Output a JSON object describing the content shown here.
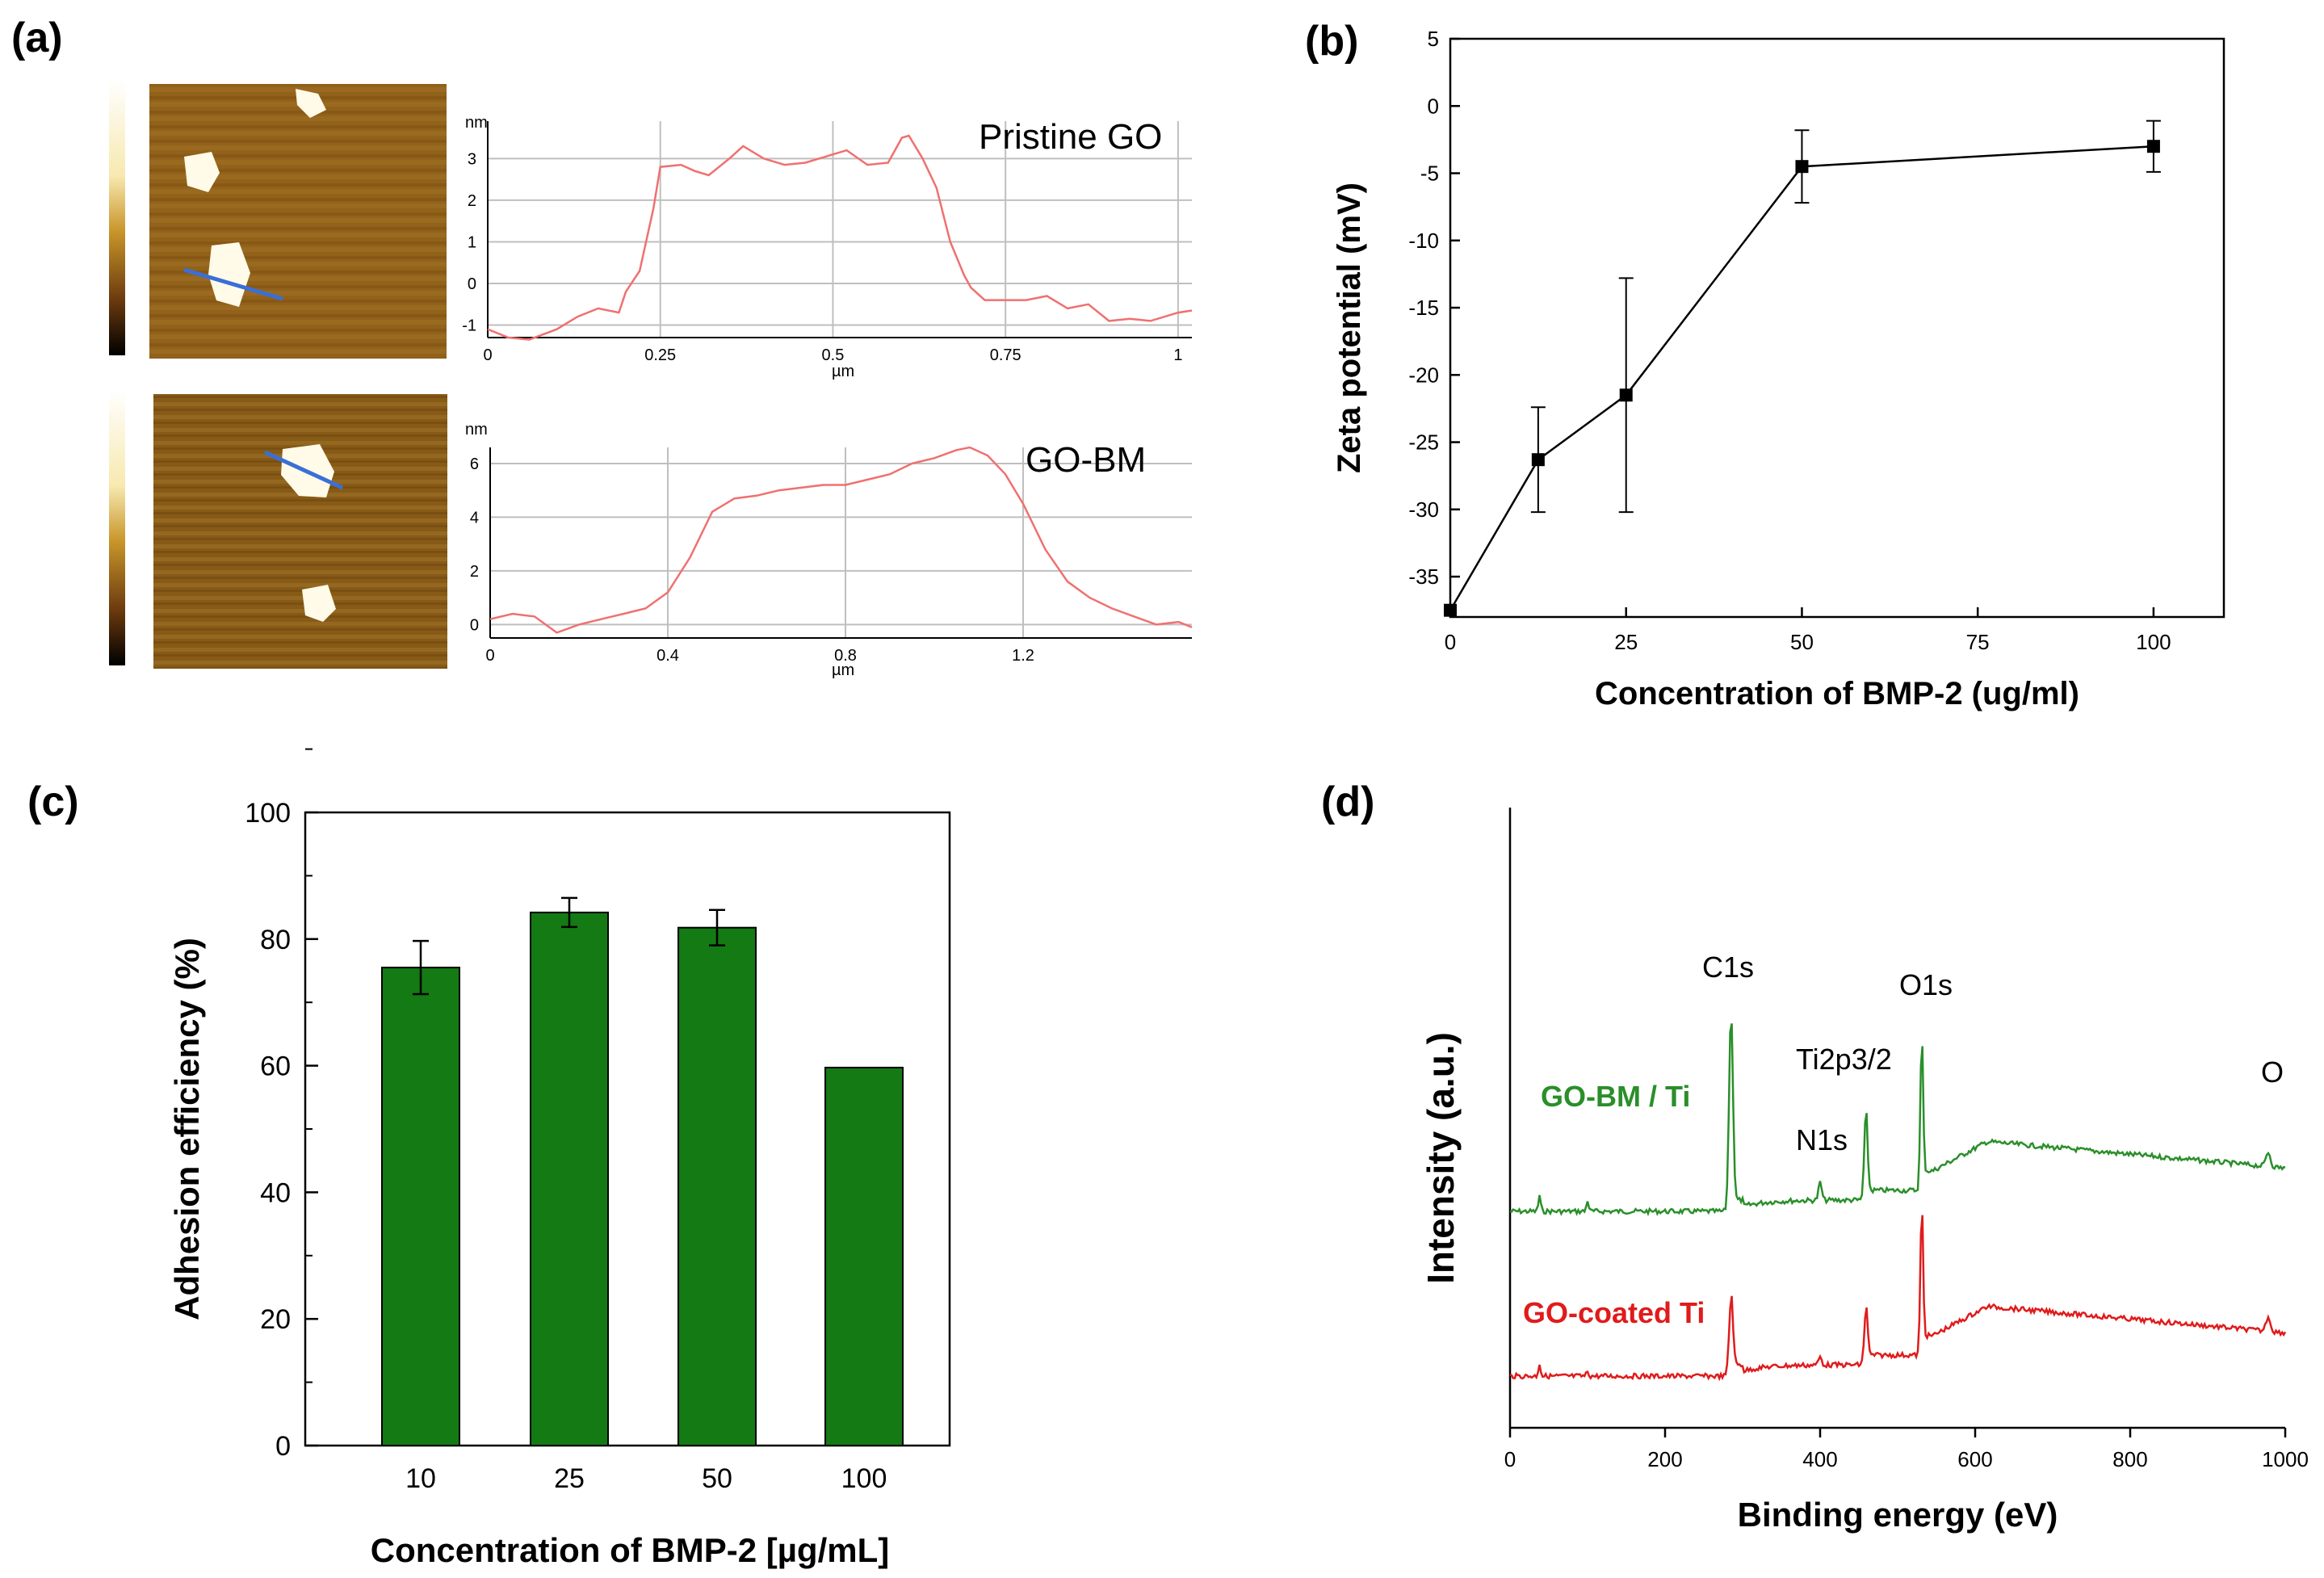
{
  "panel_labels": {
    "a": "(a)",
    "b": "(b)",
    "c": "(c)",
    "d": "(d)"
  },
  "colors": {
    "profile_line": "#f07070",
    "scan_line": "#3a6fd6",
    "bar_fill": "#147a14",
    "spectrum_top": "#2a8f2a",
    "spectrum_bottom": "#e01b1b",
    "axis": "#000000",
    "grid": "#bfbfbf"
  },
  "chart_data": [
    {
      "panel": "a-top",
      "type": "line",
      "title": "Pristine GO",
      "xlabel": "µm",
      "ylabel": "nm",
      "xlim": [
        0,
        1.02
      ],
      "ylim": [
        -1.3,
        3.9
      ],
      "xticks": [
        0,
        0.25,
        0.5,
        0.75,
        1
      ],
      "xtick_labels": [
        "0",
        "0.25",
        "0.5",
        "0.75",
        "1"
      ],
      "yticks": [
        -1,
        0,
        1,
        2,
        3
      ],
      "ytick_labels": [
        "-1",
        "0",
        "1",
        "2",
        "3"
      ],
      "x": [
        0,
        0.03,
        0.06,
        0.1,
        0.13,
        0.16,
        0.19,
        0.2,
        0.22,
        0.24,
        0.25,
        0.28,
        0.3,
        0.32,
        0.35,
        0.37,
        0.4,
        0.43,
        0.46,
        0.5,
        0.52,
        0.55,
        0.58,
        0.6,
        0.61,
        0.63,
        0.65,
        0.67,
        0.69,
        0.7,
        0.72,
        0.75,
        0.78,
        0.81,
        0.84,
        0.87,
        0.9,
        0.93,
        0.96,
        1.0,
        1.02
      ],
      "y": [
        -1.1,
        -1.3,
        -1.35,
        -1.1,
        -0.8,
        -0.6,
        -0.7,
        -0.2,
        0.3,
        1.8,
        2.8,
        2.85,
        2.7,
        2.6,
        3.0,
        3.3,
        3.0,
        2.85,
        2.9,
        3.1,
        3.2,
        2.85,
        2.9,
        3.5,
        3.55,
        3.0,
        2.3,
        1.0,
        0.2,
        -0.1,
        -0.4,
        -0.4,
        -0.4,
        -0.3,
        -0.6,
        -0.5,
        -0.9,
        -0.85,
        -0.9,
        -0.7,
        -0.65
      ]
    },
    {
      "panel": "a-bottom",
      "type": "line",
      "title": "GO-BM",
      "xlabel": "µm",
      "ylabel": "nm",
      "xlim": [
        0,
        1.58
      ],
      "ylim": [
        -0.5,
        6.6
      ],
      "xticks": [
        0,
        0.4,
        0.8,
        1.2
      ],
      "xtick_labels": [
        "0",
        "0.4",
        "0.8",
        "1.2"
      ],
      "yticks": [
        0,
        2,
        4,
        6
      ],
      "ytick_labels": [
        "0",
        "2",
        "4",
        "6"
      ],
      "x": [
        0,
        0.05,
        0.1,
        0.15,
        0.2,
        0.25,
        0.3,
        0.35,
        0.4,
        0.45,
        0.5,
        0.55,
        0.6,
        0.65,
        0.7,
        0.75,
        0.8,
        0.85,
        0.9,
        0.95,
        1.0,
        1.05,
        1.08,
        1.12,
        1.16,
        1.2,
        1.25,
        1.3,
        1.35,
        1.4,
        1.45,
        1.5,
        1.55,
        1.58
      ],
      "y": [
        0.2,
        0.4,
        0.3,
        -0.3,
        0.0,
        0.2,
        0.4,
        0.6,
        1.2,
        2.5,
        4.2,
        4.7,
        4.8,
        5.0,
        5.1,
        5.2,
        5.2,
        5.4,
        5.6,
        6.0,
        6.2,
        6.5,
        6.6,
        6.3,
        5.6,
        4.5,
        2.8,
        1.6,
        1.0,
        0.6,
        0.3,
        0.0,
        0.1,
        -0.1
      ]
    },
    {
      "panel": "b",
      "type": "line",
      "title": "",
      "xlabel": "Concentration of BMP-2 (ug/ml)",
      "ylabel": "Zeta potential (mV)",
      "xlim": [
        0,
        110
      ],
      "ylim": [
        -38,
        5
      ],
      "xticks": [
        0,
        25,
        50,
        75,
        100
      ],
      "xtick_labels": [
        "0",
        "25",
        "50",
        "75",
        "100"
      ],
      "yticks": [
        5,
        0,
        -5,
        -10,
        -15,
        -20,
        -25,
        -30,
        -35
      ],
      "ytick_labels": [
        "5",
        "0",
        "-5",
        "-10",
        "-15",
        "-20",
        "-25",
        "-30",
        "-35"
      ],
      "x": [
        0,
        12.5,
        25,
        50,
        100
      ],
      "y": [
        -37.5,
        -26.3,
        -21.5,
        -4.5,
        -3.0
      ],
      "err": [
        0,
        3.9,
        8.7,
        2.7,
        1.9
      ]
    },
    {
      "panel": "c",
      "type": "bar",
      "title": "",
      "xlabel": "Concentration of BMP-2 [µg/mL]",
      "ylabel": "Adhesion efficiency (%)",
      "ylim": [
        0,
        100
      ],
      "yticks": [
        0,
        20,
        40,
        60,
        80,
        100
      ],
      "ytick_labels": [
        "0",
        "20",
        "40",
        "60",
        "80",
        "100"
      ],
      "categories": [
        "10",
        "25",
        "50",
        "100"
      ],
      "values": [
        75.5,
        84.2,
        81.8,
        59.7
      ],
      "err": [
        4.2,
        2.3,
        2.8,
        0
      ]
    },
    {
      "panel": "d",
      "type": "line",
      "title": "",
      "xlabel": "Binding energy (eV)",
      "ylabel": "Intensity (a.u.)",
      "xlim": [
        0,
        1000
      ],
      "xticks": [
        0,
        200,
        400,
        600,
        800,
        1000
      ],
      "xtick_labels": [
        "0",
        "200",
        "400",
        "600",
        "800",
        "1000"
      ],
      "series": [
        {
          "name": "GO-BM / Ti",
          "peaks": [
            "C1s",
            "N1s",
            "Ti2p3/2",
            "O1s",
            "O"
          ]
        },
        {
          "name": "GO-coated Ti"
        }
      ],
      "peak_positions_eV": {
        "C1s": 285,
        "N1s": 400,
        "Ti2p3/2": 459,
        "O1s": 531,
        "O": 978
      }
    }
  ]
}
